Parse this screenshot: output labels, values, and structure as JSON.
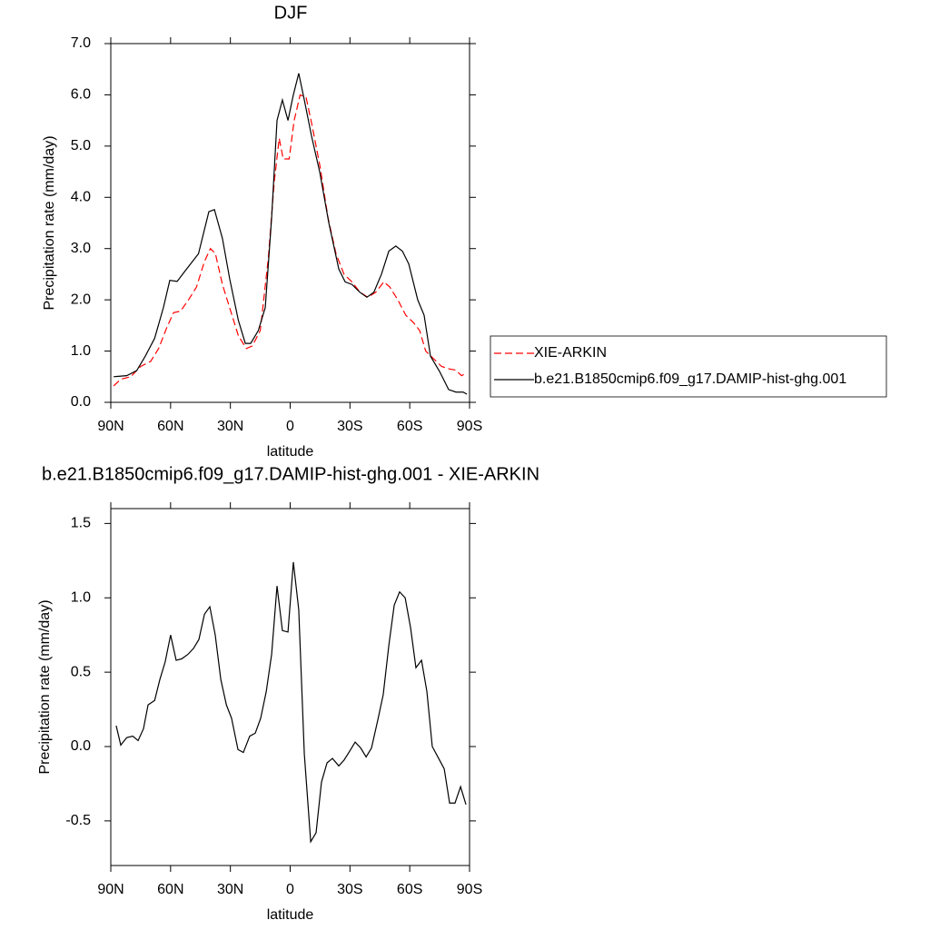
{
  "chart_data": [
    {
      "type": "line",
      "title": "DJF",
      "xlabel": "latitude",
      "ylabel": "Precipitation rate (mm/day)",
      "xlim": [
        90,
        -90
      ],
      "xticks": [
        {
          "value": 90,
          "label": "90N"
        },
        {
          "value": 60,
          "label": "60N"
        },
        {
          "value": 30,
          "label": "30N"
        },
        0,
        {
          "value": -30,
          "label": "30S"
        },
        {
          "value": -60,
          "label": "60S"
        },
        {
          "value": -90,
          "label": "90S"
        }
      ],
      "ylim": [
        0,
        7
      ],
      "yticks": [
        {
          "value": 0,
          "label": "0.0"
        },
        {
          "value": 1,
          "label": "1.0"
        },
        {
          "value": 2,
          "label": "2.0"
        },
        {
          "value": 3,
          "label": "3.0"
        },
        {
          "value": 4,
          "label": "4.0"
        },
        {
          "value": 5,
          "label": "5.0"
        },
        {
          "value": 6,
          "label": "6.0"
        },
        {
          "value": 7,
          "label": "7.0"
        }
      ],
      "legend": "outside right",
      "series": [
        {
          "name": "XIE-ARKIN",
          "color": "#ff0000",
          "linestyle": "dashed",
          "x": [
            88.6,
            85,
            80,
            75,
            70,
            66,
            62,
            58.5,
            55,
            51,
            47,
            43,
            40,
            37.5,
            34,
            30,
            26,
            22,
            19,
            15,
            11,
            8,
            5.5,
            3.5,
            0.5,
            -2,
            -5,
            -8,
            -11,
            -15,
            -19,
            -23,
            -27,
            -31,
            -35,
            -39,
            -43,
            -47,
            -50,
            -54,
            -58,
            -62,
            -65,
            -68,
            -72,
            -76,
            -80,
            -83,
            -86,
            -88.7
          ],
          "values": [
            0.32,
            0.45,
            0.5,
            0.7,
            0.8,
            1.05,
            1.45,
            1.75,
            1.78,
            2.0,
            2.25,
            2.75,
            3.0,
            2.9,
            2.3,
            1.8,
            1.3,
            1.05,
            1.1,
            1.4,
            2.8,
            4.3,
            5.15,
            4.75,
            4.75,
            5.5,
            6.0,
            5.95,
            5.4,
            4.6,
            3.6,
            2.9,
            2.5,
            2.35,
            2.15,
            2.05,
            2.15,
            2.35,
            2.25,
            2.0,
            1.7,
            1.55,
            1.4,
            1.0,
            0.85,
            0.7,
            0.65,
            0.63,
            0.52,
            0.58
          ]
        },
        {
          "name": "b.e21.B1850cmip6.f09_g17.DAMIP-hist-ghg.001",
          "color": "#000000",
          "linestyle": "solid",
          "x": [
            88.6,
            82,
            77,
            72.7,
            68,
            63.6,
            60.4,
            56.7,
            53,
            46,
            40.8,
            38,
            34,
            30.3,
            26,
            22.5,
            19.8,
            16,
            12.5,
            9.3,
            6.6,
            3.9,
            1.1,
            -1.6,
            -4.3,
            -7.1,
            -10.7,
            -14.8,
            -19.4,
            -24.4,
            -27.6,
            -31,
            -34.9,
            -38.5,
            -42,
            -45.8,
            -49.5,
            -53,
            -56.3,
            -59.5,
            -64,
            -67.2,
            -70.4,
            -75,
            -79.5,
            -83.2,
            -86.8,
            -88.7
          ],
          "values": [
            0.5,
            0.52,
            0.62,
            0.9,
            1.25,
            1.85,
            2.38,
            2.36,
            2.55,
            2.9,
            3.72,
            3.76,
            3.2,
            2.4,
            1.6,
            1.15,
            1.15,
            1.4,
            1.85,
            3.6,
            5.5,
            5.9,
            5.5,
            6.0,
            6.42,
            5.9,
            5.2,
            4.5,
            3.5,
            2.6,
            2.35,
            2.3,
            2.15,
            2.05,
            2.15,
            2.5,
            2.95,
            3.05,
            2.95,
            2.7,
            2.0,
            1.7,
            0.9,
            0.6,
            0.25,
            0.2,
            0.2,
            0.16
          ]
        }
      ]
    },
    {
      "type": "line",
      "title": "b.e21.B1850cmip6.f09_g17.DAMIP-hist-ghg.001 - XIE-ARKIN",
      "xlabel": "latitude",
      "ylabel": "Precipitation rate (mm/day)",
      "xlim": [
        90,
        -90
      ],
      "xticks": [
        {
          "value": 90,
          "label": "90N"
        },
        {
          "value": 60,
          "label": "60N"
        },
        {
          "value": 30,
          "label": "30N"
        },
        0,
        {
          "value": -30,
          "label": "30S"
        },
        {
          "value": -60,
          "label": "60S"
        },
        {
          "value": -90,
          "label": "90S"
        }
      ],
      "ylim": [
        -0.8,
        1.6
      ],
      "yticks": [
        {
          "value": -0.5,
          "label": "-0.5"
        },
        {
          "value": 0,
          "label": "0.0"
        },
        0.5,
        {
          "value": 1,
          "label": "1.0"
        },
        1.5
      ],
      "color": "#000000",
      "x": [
        87.3,
        85,
        82,
        79,
        76.3,
        73.6,
        71.3,
        68,
        65.4,
        62.7,
        60,
        57.2,
        54.4,
        51.3,
        48.5,
        45.8,
        43,
        40.3,
        37.6,
        34.8,
        32,
        29.4,
        26.2,
        23.5,
        20.3,
        17.5,
        14.8,
        12,
        9.3,
        6.6,
        3.9,
        1.1,
        -1.6,
        -4.3,
        -7.1,
        -10.3,
        -13,
        -15.7,
        -18.5,
        -21.2,
        -24.4,
        -27.1,
        -29.9,
        -32.6,
        -35.4,
        -38.1,
        -40.8,
        -44,
        -46.7,
        -49.5,
        -52.2,
        -54.9,
        -57.7,
        -60.4,
        -63.1,
        -65.9,
        -68.6,
        -71.3,
        -74.1,
        -77.3,
        -80,
        -82.7,
        -85.5,
        -88.2
      ],
      "values": [
        0.14,
        0.01,
        0.06,
        0.07,
        0.04,
        0.12,
        0.28,
        0.31,
        0.45,
        0.57,
        0.75,
        0.58,
        0.59,
        0.62,
        0.66,
        0.72,
        0.89,
        0.94,
        0.75,
        0.45,
        0.28,
        0.19,
        -0.02,
        -0.04,
        0.07,
        0.09,
        0.19,
        0.37,
        0.62,
        1.08,
        0.78,
        0.77,
        1.24,
        0.92,
        -0.05,
        -0.64,
        -0.58,
        -0.24,
        -0.11,
        -0.08,
        -0.13,
        -0.09,
        -0.03,
        0.03,
        -0.01,
        -0.07,
        -0.01,
        0.18,
        0.35,
        0.68,
        0.95,
        1.04,
        1.0,
        0.8,
        0.53,
        0.58,
        0.37,
        0.0,
        -0.07,
        -0.15,
        -0.38,
        -0.38,
        -0.27,
        -0.39
      ]
    }
  ]
}
